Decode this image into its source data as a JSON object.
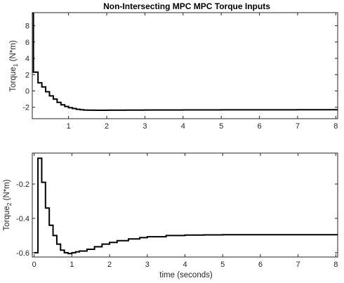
{
  "chart_data": [
    {
      "type": "line",
      "title": "Non-Intersecting MPC MPC Torque Inputs",
      "ylabel_main": "Torque",
      "ylabel_sub": "1",
      "ylabel_units": " (N*m)",
      "xlabel": "",
      "xlim": [
        0.05,
        8.05
      ],
      "ylim": [
        -3.4,
        9.6
      ],
      "xticks": [
        1,
        2,
        3,
        4,
        5,
        6,
        7,
        8
      ],
      "xticklabels": [
        "1",
        "2",
        "3",
        "4",
        "5",
        "6",
        "7",
        "8"
      ],
      "yticks": [
        -2,
        0,
        2,
        4,
        6,
        8
      ],
      "yticklabels": [
        "-2",
        "0",
        "2",
        "4",
        "6",
        "8"
      ],
      "series": [
        {
          "name": "Torque 1",
          "color": "#000000",
          "step": true,
          "x": [
            0.05,
            0.08,
            0.1,
            0.2,
            0.3,
            0.4,
            0.5,
            0.6,
            0.7,
            0.8,
            0.9,
            1.0,
            1.1,
            1.2,
            1.3,
            1.4,
            1.5,
            1.7,
            2.0,
            2.5,
            3.0,
            4.0,
            5.0,
            6.0,
            7.0,
            8.05
          ],
          "y": [
            9.5,
            2.3,
            2.3,
            1.0,
            0.5,
            -0.1,
            -0.6,
            -1.0,
            -1.4,
            -1.7,
            -1.9,
            -2.05,
            -2.15,
            -2.25,
            -2.3,
            -2.34,
            -2.36,
            -2.37,
            -2.36,
            -2.35,
            -2.33,
            -2.32,
            -2.31,
            -2.31,
            -2.3,
            -2.3
          ]
        }
      ]
    },
    {
      "type": "line",
      "title": "",
      "ylabel_main": "Torque",
      "ylabel_sub": "2",
      "ylabel_units": " (N*m)",
      "xlabel": "time (seconds)",
      "xlim": [
        -0.05,
        8.05
      ],
      "ylim": [
        -0.625,
        -0.02
      ],
      "xticks": [
        0,
        1,
        2,
        3,
        4,
        5,
        6,
        7,
        8
      ],
      "xticklabels": [
        "0",
        "1",
        "2",
        "3",
        "4",
        "5",
        "6",
        "7",
        "8"
      ],
      "yticks": [
        -0.6,
        -0.4,
        -0.2
      ],
      "yticklabels": [
        "-0.6",
        "-0.4",
        "-0.2"
      ],
      "series": [
        {
          "name": "Torque 2",
          "color": "#000000",
          "step": true,
          "x": [
            0.0,
            0.1,
            0.2,
            0.3,
            0.4,
            0.5,
            0.6,
            0.7,
            0.8,
            0.9,
            1.0,
            1.1,
            1.2,
            1.4,
            1.6,
            1.8,
            2.0,
            2.2,
            2.5,
            2.8,
            3.0,
            3.5,
            4.0,
            4.5,
            5.0,
            6.0,
            7.0,
            8.05
          ],
          "y": [
            -0.6,
            -0.05,
            -0.19,
            -0.34,
            -0.44,
            -0.5,
            -0.55,
            -0.585,
            -0.6,
            -0.605,
            -0.6,
            -0.595,
            -0.59,
            -0.58,
            -0.565,
            -0.55,
            -0.54,
            -0.53,
            -0.52,
            -0.512,
            -0.507,
            -0.5,
            -0.497,
            -0.496,
            -0.495,
            -0.495,
            -0.495,
            -0.495
          ]
        }
      ]
    }
  ]
}
